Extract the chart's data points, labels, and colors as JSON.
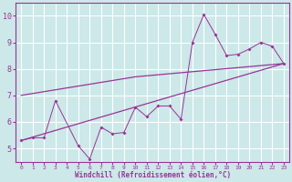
{
  "xlabel": "Windchill (Refroidissement éolien,°C)",
  "background_color": "#cce8e8",
  "grid_color": "#ffffff",
  "line_color": "#993399",
  "xlim": [
    -0.5,
    23.5
  ],
  "ylim": [
    4.5,
    10.5
  ],
  "xticks": [
    0,
    1,
    2,
    3,
    4,
    5,
    6,
    7,
    8,
    9,
    10,
    11,
    12,
    13,
    14,
    15,
    16,
    17,
    18,
    19,
    20,
    21,
    22,
    23
  ],
  "yticks": [
    5,
    6,
    7,
    8,
    9,
    10
  ],
  "line1_x": [
    0,
    23
  ],
  "line1_y": [
    5.3,
    8.2
  ],
  "line2_x": [
    0,
    10,
    23
  ],
  "line2_y": [
    7.0,
    7.7,
    8.2
  ],
  "scatter_x": [
    0,
    1,
    2,
    3,
    5,
    6,
    7,
    8,
    9,
    10,
    11,
    12,
    13,
    14,
    15,
    16,
    17,
    18,
    19,
    20,
    21,
    22,
    23
  ],
  "scatter_y": [
    5.3,
    5.4,
    5.4,
    6.8,
    5.1,
    4.6,
    5.8,
    5.55,
    5.6,
    6.55,
    6.2,
    6.6,
    6.6,
    6.1,
    9.0,
    10.05,
    9.3,
    8.5,
    8.55,
    8.75,
    9.0,
    8.85,
    8.2
  ]
}
